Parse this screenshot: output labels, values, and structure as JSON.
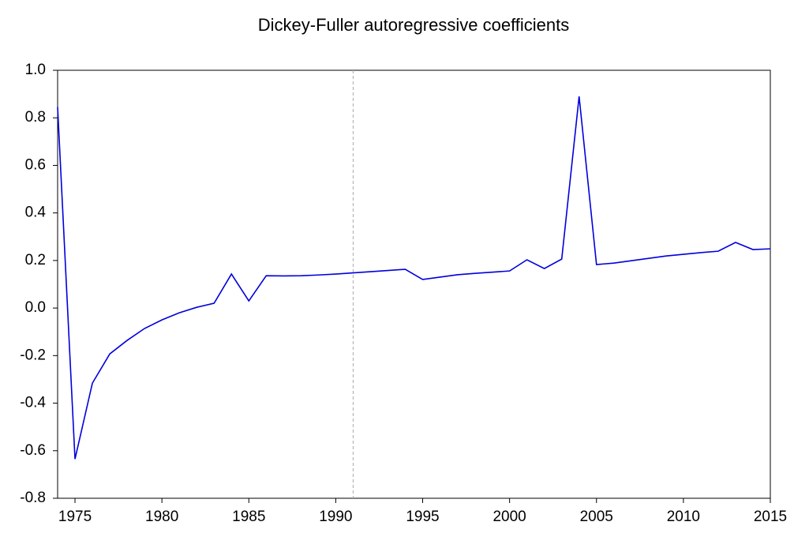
{
  "chart_data": {
    "type": "line",
    "title": "Dickey-Fuller autoregressive coefficients",
    "x": [
      1974,
      1975,
      1976,
      1977,
      1978,
      1979,
      1980,
      1981,
      1982,
      1983,
      1984,
      1985,
      1986,
      1987,
      1988,
      1989,
      1990,
      1991,
      1992,
      1993,
      1994,
      1995,
      1996,
      1997,
      1998,
      1999,
      2000,
      2001,
      2002,
      2003,
      2004,
      2005,
      2006,
      2007,
      2008,
      2009,
      2010,
      2011,
      2012,
      2013,
      2014,
      2015
    ],
    "series": [
      {
        "color": "#0000dd",
        "values": [
          0.845,
          -0.635,
          -0.316,
          -0.193,
          -0.136,
          -0.086,
          -0.05,
          -0.02,
          0.003,
          0.02,
          0.143,
          0.03,
          0.136,
          0.135,
          0.136,
          0.139,
          0.143,
          0.148,
          0.153,
          0.158,
          0.163,
          0.12,
          0.13,
          0.14,
          0.146,
          0.151,
          0.156,
          0.203,
          0.166,
          0.206,
          0.89,
          0.183,
          0.189,
          0.199,
          0.209,
          0.219,
          0.226,
          0.233,
          0.239,
          0.276,
          0.246,
          0.249
        ]
      }
    ],
    "xlim": [
      1974,
      2015
    ],
    "xticks": [
      1975,
      1980,
      1985,
      1990,
      1995,
      2000,
      2005,
      2010,
      2015
    ],
    "ylim": [
      -0.8,
      1.0
    ],
    "yticks": [
      -0.8,
      -0.6,
      -0.4,
      -0.2,
      {
        "value": 0.0,
        "label": "0.0"
      },
      0.2,
      0.4,
      0.6,
      0.8,
      {
        "value": 1.0,
        "label": "1.0"
      }
    ],
    "reference_line_x": 1991,
    "reference_line_color": "#aaaaaa",
    "grid": false
  }
}
